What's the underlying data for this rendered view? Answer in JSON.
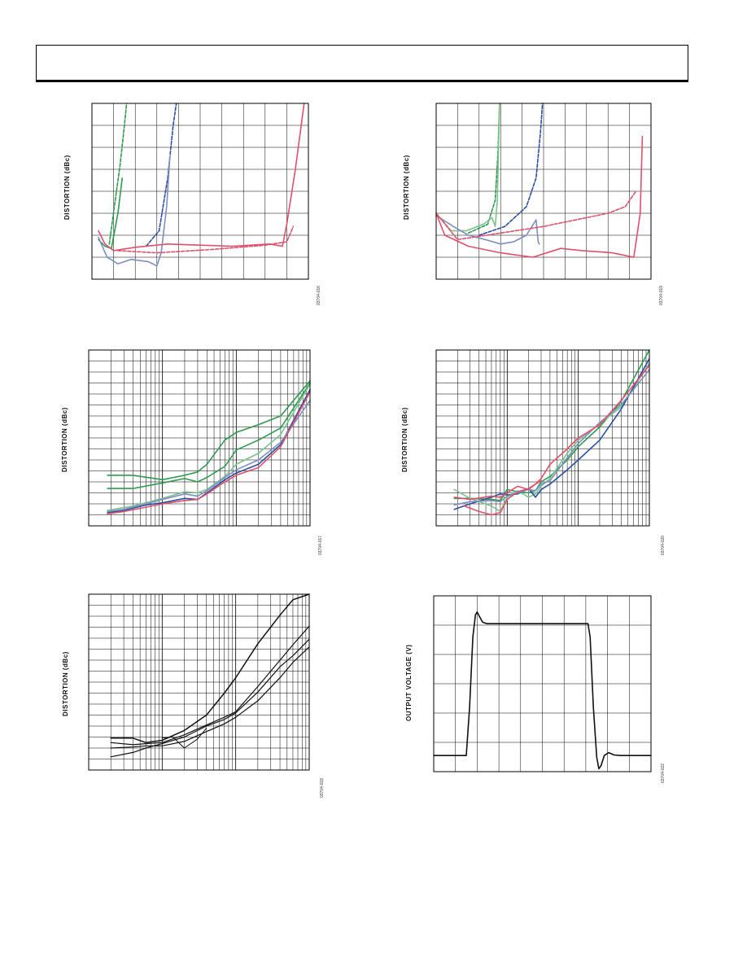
{
  "header": {
    "text": ""
  },
  "panels": [
    {
      "id": "p1",
      "ylabel": "DISTORTION (dBc)",
      "figure_id": "03704-016"
    },
    {
      "id": "p2",
      "ylabel": "DISTORTION (dBc)",
      "figure_id": "03704-019"
    },
    {
      "id": "p3",
      "ylabel": "DISTORTION (dBc)",
      "figure_id": "03704-017"
    },
    {
      "id": "p4",
      "ylabel": "DISTORTION (dBc)",
      "figure_id": "03704-020"
    },
    {
      "id": "p5",
      "ylabel": "DISTORTION (dBc)",
      "figure_id": "03704-018"
    },
    {
      "id": "p6",
      "ylabel": "OUTPUT VOLTAGE (V)",
      "figure_id": "03704-022"
    }
  ],
  "colors": {
    "green": "#2e9a4e",
    "blue": "#2a4fa0",
    "red": "#e0506a",
    "light_blue": "#7d8fc0",
    "light_green": "#7cc28e",
    "black": "#111111"
  },
  "chart_data": [
    {
      "panel": "p1",
      "type": "line",
      "xscale": "linear",
      "xlim": [
        0,
        10
      ],
      "ylim": [
        0,
        8
      ],
      "grid": true,
      "series": [
        {
          "color": "green",
          "dash": true,
          "x": [
            0.8,
            1.05,
            1.3,
            1.5,
            1.6
          ],
          "y": [
            1.6,
            3.4,
            5.2,
            7.0,
            8.0
          ]
        },
        {
          "color": "green",
          "dash": false,
          "x": [
            0.3,
            0.6,
            0.9,
            1.2,
            1.4
          ],
          "y": [
            1.8,
            1.5,
            1.4,
            3.0,
            4.6
          ]
        },
        {
          "color": "blue",
          "dash": true,
          "x": [
            2.5,
            3.1,
            3.5,
            3.75,
            3.9
          ],
          "y": [
            1.5,
            2.2,
            4.6,
            7.0,
            8.0
          ]
        },
        {
          "color": "light_blue",
          "dash": false,
          "x": [
            0.3,
            0.7,
            1.2,
            1.8,
            2.6,
            3.0,
            3.2,
            3.45,
            3.6
          ],
          "y": [
            1.9,
            1.0,
            0.7,
            0.9,
            0.8,
            0.6,
            1.2,
            3.3,
            5.6
          ]
        },
        {
          "color": "red",
          "dash": true,
          "x": [
            1.2,
            3.0,
            5.5,
            8.0,
            9.0,
            9.3
          ],
          "y": [
            1.3,
            1.2,
            1.35,
            1.55,
            1.7,
            2.4
          ]
        },
        {
          "color": "red",
          "dash": false,
          "x": [
            0.3,
            0.6,
            1.0,
            2.0,
            3.5,
            5.0,
            6.5,
            8.2,
            8.8,
            9.0,
            9.4,
            9.8
          ],
          "y": [
            2.2,
            1.6,
            1.3,
            1.45,
            1.6,
            1.55,
            1.5,
            1.6,
            1.5,
            2.5,
            5.0,
            8.0
          ]
        }
      ]
    },
    {
      "panel": "p2",
      "type": "line",
      "xscale": "linear",
      "xlim": [
        0,
        10
      ],
      "ylim": [
        0,
        8
      ],
      "grid": true,
      "series": [
        {
          "color": "green",
          "dash": true,
          "x": [
            1.5,
            2.4,
            2.75,
            2.88,
            2.95
          ],
          "y": [
            2.1,
            2.5,
            3.6,
            5.8,
            8.0
          ]
        },
        {
          "color": "light_green",
          "dash": false,
          "x": [
            0.0,
            0.7,
            1.4,
            2.2,
            2.6,
            2.75,
            2.85,
            2.95
          ],
          "y": [
            3.0,
            2.2,
            2.2,
            2.5,
            2.8,
            2.4,
            3.6,
            8.0
          ]
        },
        {
          "color": "blue",
          "dash": true,
          "x": [
            2.0,
            3.2,
            4.2,
            4.65,
            4.85,
            4.95
          ],
          "y": [
            2.0,
            2.4,
            3.3,
            4.6,
            6.6,
            8.0
          ]
        },
        {
          "color": "light_blue",
          "dash": false,
          "x": [
            0.0,
            0.8,
            1.5,
            2.3,
            3.0,
            3.6,
            4.2,
            4.65,
            4.75,
            4.8
          ],
          "y": [
            2.9,
            2.4,
            2.0,
            1.8,
            1.6,
            1.7,
            2.0,
            2.7,
            1.7,
            1.6
          ]
        },
        {
          "color": "red",
          "dash": true,
          "x": [
            0.0,
            1.0,
            3.0,
            5.0,
            7.0,
            8.0,
            8.8,
            9.3
          ],
          "y": [
            3.0,
            1.8,
            2.1,
            2.4,
            2.8,
            3.0,
            3.3,
            4.0
          ]
        },
        {
          "color": "red",
          "dash": false,
          "x": [
            0.0,
            0.4,
            1.5,
            3.0,
            4.5,
            5.8,
            6.8,
            8.2,
            9.2,
            9.5,
            9.6
          ],
          "y": [
            3.0,
            2.0,
            1.5,
            1.2,
            1.0,
            1.4,
            1.3,
            1.2,
            1.0,
            3.0,
            6.5
          ]
        }
      ]
    },
    {
      "panel": "p3",
      "type": "line",
      "xscale": "log",
      "xlim": [
        1,
        1000
      ],
      "ylim": [
        0,
        16
      ],
      "grid": true,
      "series": [
        {
          "color": "green",
          "x": [
            1.8,
            4,
            10,
            20,
            30,
            40,
            70,
            100,
            200,
            400,
            1000
          ],
          "y": [
            4.6,
            4.6,
            4.2,
            4.6,
            4.9,
            5.6,
            7.8,
            8.5,
            9.2,
            10.0,
            13.2
          ]
        },
        {
          "color": "green",
          "x": [
            1.8,
            4,
            10,
            20,
            30,
            40,
            70,
            100,
            200,
            400,
            1000
          ],
          "y": [
            3.4,
            3.4,
            3.9,
            4.3,
            4.0,
            4.4,
            5.4,
            6.9,
            7.8,
            8.9,
            13.0
          ]
        },
        {
          "color": "light_green",
          "x": [
            1.8,
            4,
            10,
            20,
            30,
            40,
            70,
            100,
            200,
            400,
            1000
          ],
          "y": [
            1.4,
            1.8,
            2.5,
            3.1,
            3.0,
            3.3,
            4.5,
            5.6,
            6.6,
            8.3,
            12.9
          ]
        },
        {
          "color": "blue",
          "x": [
            1.8,
            3,
            6,
            10,
            20,
            30,
            40,
            70,
            100,
            200,
            400,
            1000
          ],
          "y": [
            1.2,
            1.4,
            1.9,
            2.1,
            2.5,
            2.4,
            3.0,
            4.2,
            4.8,
            5.6,
            7.4,
            12.4
          ]
        },
        {
          "color": "light_blue",
          "x": [
            1.8,
            3,
            6,
            10,
            20,
            30,
            40,
            70,
            100,
            200,
            400,
            1000
          ],
          "y": [
            1.3,
            1.5,
            2.0,
            2.4,
            2.9,
            2.7,
            3.2,
            4.4,
            5.1,
            6.0,
            7.6,
            11.4
          ]
        },
        {
          "color": "red",
          "x": [
            1.8,
            3,
            6,
            10,
            20,
            30,
            40,
            70,
            100,
            200,
            400,
            1000
          ],
          "y": [
            1.1,
            1.3,
            1.7,
            2.0,
            2.3,
            2.4,
            2.9,
            4.0,
            4.6,
            5.3,
            7.2,
            12.2
          ]
        }
      ]
    },
    {
      "panel": "p4",
      "type": "line",
      "xscale": "log",
      "xlim": [
        1,
        1000
      ],
      "ylim": [
        0,
        16
      ],
      "grid": true,
      "series": [
        {
          "color": "green",
          "x": [
            1.8,
            3,
            6,
            8,
            10,
            14,
            20,
            25,
            30,
            40,
            70,
            100,
            200,
            400,
            1000
          ],
          "y": [
            2.5,
            2.5,
            2.4,
            2.3,
            3.3,
            3.1,
            3.0,
            3.2,
            4.0,
            4.5,
            6.0,
            7.2,
            9.0,
            11.3,
            16.0
          ]
        },
        {
          "color": "light_green",
          "x": [
            1.8,
            3,
            6,
            8,
            10,
            14,
            20,
            25,
            30,
            40,
            70,
            100,
            200,
            400,
            1000
          ],
          "y": [
            3.3,
            2.5,
            1.8,
            1.3,
            2.6,
            3.2,
            2.6,
            2.9,
            3.6,
            4.3,
            6.6,
            7.8,
            9.3,
            10.8,
            14.8
          ]
        },
        {
          "color": "blue",
          "x": [
            1.8,
            3,
            6,
            8,
            10,
            14,
            20,
            25,
            30,
            40,
            70,
            100,
            200,
            400,
            1000
          ],
          "y": [
            1.5,
            2.0,
            2.6,
            2.9,
            2.8,
            2.9,
            3.4,
            2.6,
            3.3,
            3.8,
            5.1,
            6.0,
            7.8,
            10.6,
            15.2
          ]
        },
        {
          "color": "light_blue",
          "x": [
            1.8,
            3,
            6,
            8,
            10,
            14,
            20,
            25,
            30,
            40,
            70,
            100,
            200,
            400,
            1000
          ],
          "y": [
            1.9,
            2.2,
            2.3,
            2.2,
            2.7,
            3.0,
            3.3,
            3.2,
            3.8,
            4.1,
            6.2,
            7.5,
            9.4,
            11.0,
            14.2
          ]
        },
        {
          "color": "red",
          "x": [
            1.8,
            3,
            6,
            8,
            10,
            14,
            20,
            25,
            30,
            40,
            70,
            100,
            200,
            400,
            1000
          ],
          "y": [
            2.6,
            2.4,
            2.7,
            2.6,
            3.0,
            3.6,
            3.3,
            3.8,
            4.3,
            5.6,
            7.0,
            8.0,
            9.2,
            11.4,
            14.6
          ]
        },
        {
          "color": "red",
          "x": [
            2.5,
            4,
            6,
            8,
            10,
            14,
            20,
            25,
            30
          ],
          "y": [
            1.8,
            1.3,
            1.0,
            1.2,
            2.4,
            3.1,
            3.4,
            3.8,
            4.1
          ]
        }
      ]
    },
    {
      "panel": "p5",
      "type": "line",
      "xscale": "log",
      "xlim": [
        1,
        1000
      ],
      "ylim": [
        0,
        16
      ],
      "grid": true,
      "series": [
        {
          "color": "black",
          "width": 1.5,
          "x": [
            2,
            4,
            6,
            10,
            20,
            40,
            70,
            100,
            200,
            400,
            600,
            1000
          ],
          "y": [
            2.9,
            2.9,
            2.5,
            2.7,
            3.6,
            5.0,
            7.0,
            8.4,
            11.5,
            14.1,
            15.5,
            16.0
          ]
        },
        {
          "color": "black",
          "width": 1.2,
          "x": [
            2,
            4,
            6,
            10,
            20,
            40,
            70,
            100,
            200,
            400,
            600,
            1000
          ],
          "y": [
            2.5,
            2.3,
            2.4,
            2.5,
            3.2,
            4.1,
            4.8,
            5.3,
            7.6,
            10.0,
            11.4,
            13.1
          ]
        },
        {
          "color": "black",
          "width": 1.2,
          "x": [
            2,
            4,
            6,
            10,
            20,
            40,
            70,
            100,
            200,
            400,
            600,
            1000
          ],
          "y": [
            2.0,
            2.1,
            2.2,
            2.2,
            2.6,
            3.5,
            4.2,
            4.8,
            6.3,
            8.4,
            9.8,
            11.2
          ]
        },
        {
          "color": "black",
          "width": 1.2,
          "x": [
            2,
            4,
            6,
            10,
            20,
            40,
            70,
            100,
            200,
            400,
            600,
            1000
          ],
          "y": [
            1.2,
            1.6,
            2.0,
            2.4,
            3.0,
            4.0,
            4.6,
            5.2,
            7.1,
            9.4,
            10.4,
            11.9
          ]
        },
        {
          "color": "black",
          "width": 1.0,
          "x": [
            10,
            14,
            20,
            30,
            40
          ],
          "y": [
            2.9,
            3.0,
            2.0,
            2.8,
            3.8
          ]
        }
      ]
    },
    {
      "panel": "p6",
      "type": "line",
      "xscale": "linear",
      "xlim": [
        0,
        10
      ],
      "ylim": [
        0,
        6
      ],
      "grid": true,
      "series": [
        {
          "color": "black",
          "width": 1.6,
          "x": [
            0,
            1.5,
            1.65,
            1.8,
            1.92,
            2.0,
            2.1,
            2.25,
            2.45,
            3.0,
            4.0,
            5.0,
            6.0,
            7.1,
            7.2,
            7.35,
            7.5,
            7.6,
            7.7,
            7.85,
            8.05,
            8.3,
            8.6,
            10.0
          ],
          "y": [
            0.55,
            0.55,
            2.2,
            4.6,
            5.35,
            5.45,
            5.3,
            5.1,
            5.05,
            5.05,
            5.05,
            5.05,
            5.05,
            5.05,
            4.6,
            2.2,
            0.5,
            0.1,
            0.2,
            0.55,
            0.65,
            0.57,
            0.55,
            0.55
          ]
        }
      ]
    }
  ]
}
